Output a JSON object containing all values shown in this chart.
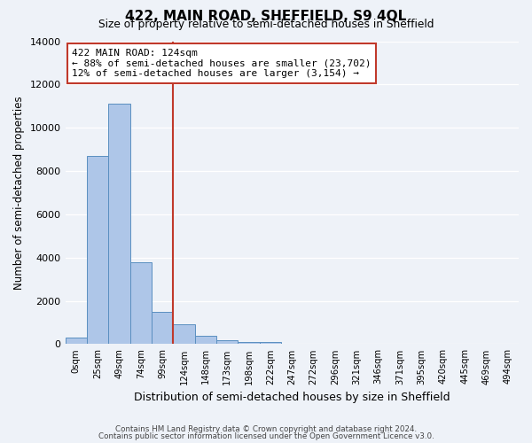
{
  "title": "422, MAIN ROAD, SHEFFIELD, S9 4QL",
  "subtitle": "Size of property relative to semi-detached houses in Sheffield",
  "xlabel": "Distribution of semi-detached houses by size in Sheffield",
  "ylabel": "Number of semi-detached properties",
  "bin_labels": [
    "0sqm",
    "25sqm",
    "49sqm",
    "74sqm",
    "99sqm",
    "124sqm",
    "148sqm",
    "173sqm",
    "198sqm",
    "222sqm",
    "247sqm",
    "272sqm",
    "296sqm",
    "321sqm",
    "346sqm",
    "371sqm",
    "395sqm",
    "420sqm",
    "445sqm",
    "469sqm",
    "494sqm"
  ],
  "bar_values": [
    300,
    8700,
    11100,
    3800,
    1500,
    900,
    400,
    200,
    100,
    100,
    0,
    0,
    0,
    0,
    0,
    0,
    0,
    0,
    0,
    0,
    0
  ],
  "bar_color": "#aec6e8",
  "bar_edge_color": "#5a8fc0",
  "vline_color": "#c0392b",
  "annotation_title": "422 MAIN ROAD: 124sqm",
  "annotation_line1": "← 88% of semi-detached houses are smaller (23,702)",
  "annotation_line2": "12% of semi-detached houses are larger (3,154) →",
  "annotation_box_color": "#ffffff",
  "annotation_box_edge": "#c0392b",
  "ylim": [
    0,
    14000
  ],
  "yticks": [
    0,
    2000,
    4000,
    6000,
    8000,
    10000,
    12000,
    14000
  ],
  "background_color": "#eef2f8",
  "footnote1": "Contains HM Land Registry data © Crown copyright and database right 2024.",
  "footnote2": "Contains public sector information licensed under the Open Government Licence v3.0."
}
